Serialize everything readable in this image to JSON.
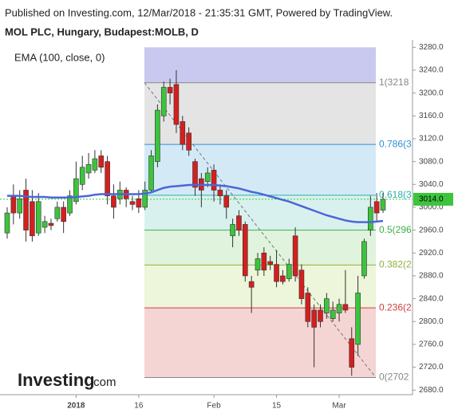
{
  "header": {
    "published": "Published on Investing.com, 12/Mar/2018 - 21:35:31 GMT, Powered by TradingView.",
    "symbol": "MOL PLC, Hungary, Budapest:MOLB, D"
  },
  "logo": {
    "name": "Investing",
    "suffix": ".com"
  },
  "chart_data": {
    "type": "candlestick",
    "categories": [
      null,
      null,
      null,
      null,
      null,
      null,
      null,
      null,
      null,
      null,
      null,
      "2018",
      null,
      null,
      null,
      null,
      null,
      null,
      null,
      null,
      null,
      "16",
      null,
      null,
      null,
      null,
      null,
      null,
      null,
      null,
      null,
      null,
      null,
      "Feb",
      null,
      null,
      null,
      null,
      null,
      null,
      null,
      null,
      null,
      "15",
      null,
      null,
      null,
      null,
      null,
      null,
      null,
      null,
      null,
      "Mar",
      null,
      null,
      null,
      null,
      null,
      null,
      null
    ],
    "open": [
      2955,
      3020,
      2990,
      3030,
      3010,
      2955,
      2965,
      2972,
      2980,
      3000,
      2990,
      3010,
      3040,
      3060,
      3065,
      3090,
      3080,
      3020,
      3015,
      3030,
      3010,
      3015,
      3000,
      3030,
      3080,
      3160,
      3210,
      3215,
      3150,
      3130,
      3080,
      3050,
      3045,
      3065,
      3030,
      3020,
      2950,
      2985,
      2970,
      2870,
      2890,
      2920,
      2905,
      2900,
      2880,
      2875,
      2950,
      2890,
      2850,
      2820,
      2820,
      2815,
      2805,
      2815,
      2830,
      2770,
      2760,
      2880,
      2960,
      3010,
      2995
    ],
    "high": [
      3000,
      3040,
      3030,
      3050,
      3030,
      3025,
      2985,
      2980,
      3010,
      3010,
      3030,
      3080,
      3090,
      3095,
      3100,
      3100,
      3090,
      3040,
      3045,
      3035,
      3020,
      3030,
      3045,
      3100,
      3180,
      3220,
      3225,
      3240,
      3160,
      3140,
      3085,
      3060,
      3070,
      3075,
      3040,
      3030,
      2980,
      2995,
      2975,
      2880,
      2920,
      2930,
      2915,
      2925,
      2890,
      2910,
      2965,
      2900,
      2860,
      2830,
      2830,
      2850,
      2835,
      2840,
      2890,
      2790,
      2880,
      2945,
      3020,
      3025,
      3025
    ],
    "low": [
      2945,
      2970,
      2980,
      2940,
      2940,
      2950,
      2955,
      2960,
      2975,
      2955,
      2985,
      3005,
      3030,
      3050,
      3060,
      3060,
      3005,
      2980,
      3005,
      3000,
      2995,
      2990,
      2995,
      3025,
      3070,
      3150,
      3180,
      3130,
      3100,
      3090,
      3020,
      3000,
      3035,
      3010,
      3005,
      2980,
      2930,
      2950,
      2870,
      2815,
      2880,
      2880,
      2890,
      2860,
      2865,
      2870,
      2870,
      2830,
      2790,
      2720,
      2790,
      2805,
      2800,
      2800,
      2815,
      2705,
      2740,
      2875,
      2950,
      2975,
      2990
    ],
    "close": [
      2990,
      2990,
      3015,
      2960,
      2950,
      3010,
      2975,
      2968,
      3000,
      2975,
      3020,
      3050,
      3070,
      3075,
      3085,
      3070,
      3020,
      3000,
      3030,
      3015,
      3005,
      3000,
      3030,
      3090,
      3170,
      3210,
      3200,
      3145,
      3110,
      3100,
      3035,
      3030,
      3060,
      3030,
      3020,
      3000,
      2970,
      2960,
      2880,
      2860,
      2910,
      2890,
      2900,
      2870,
      2870,
      2900,
      2880,
      2840,
      2800,
      2790,
      2800,
      2840,
      2820,
      2830,
      2820,
      2720,
      2850,
      2940,
      3000,
      2990,
      3014
    ],
    "up_color": "#3cc43c",
    "down_color": "#d41f1f",
    "ema": {
      "name": "EMA (100, close, 0)",
      "color": "#4a66d8",
      "values": [
        3020,
        3020,
        3020,
        3019,
        3018,
        3018,
        3018,
        3017,
        3017,
        3017,
        3017,
        3018,
        3019,
        3020,
        3022,
        3023,
        3023,
        3023,
        3023,
        3023,
        3023,
        3023,
        3024,
        3026,
        3030,
        3034,
        3036,
        3037,
        3038,
        3039,
        3039,
        3039,
        3039,
        3039,
        3038,
        3037,
        3035,
        3033,
        3030,
        3027,
        3025,
        3022,
        3019,
        3016,
        3013,
        3010,
        3006,
        3002,
        2998,
        2994,
        2990,
        2986,
        2983,
        2980,
        2977,
        2975,
        2974,
        2974,
        2974,
        2975,
        2976
      ]
    },
    "last_price": {
      "value": 3014,
      "label": "3014.0",
      "color": "#3cc43c"
    },
    "fib": {
      "top": 3280,
      "top_fill": "#c9c9f0",
      "levels": [
        {
          "label": "1(3218",
          "price": 3218,
          "color": "#888888",
          "fill": "#e4e4e4"
        },
        {
          "label": "0.786(3",
          "price": 3110,
          "color": "#2e8fd0",
          "fill": "#d4e9f6"
        },
        {
          "label": "0.618(3",
          "price": 3021,
          "color": "#29b0a8",
          "fill": "#d9f1ee"
        },
        {
          "label": "0.5(296",
          "price": 2960,
          "color": "#3cb04a",
          "fill": "#e0f3dc"
        },
        {
          "label": "0.382(2",
          "price": 2899,
          "color": "#8cb03c",
          "fill": "#edf5da"
        },
        {
          "label": "0.236(2",
          "price": 2824,
          "color": "#d04040",
          "fill": "#f5d4d4"
        },
        {
          "label": "0(2702",
          "price": 2702,
          "color": "#888888"
        }
      ]
    },
    "ylim": [
      2672,
      3293
    ],
    "yticks": [
      {
        "value": 2680,
        "label": "2680.0"
      },
      {
        "value": 2720,
        "label": "2720.0"
      },
      {
        "value": 2760,
        "label": "2760.0"
      },
      {
        "value": 2800,
        "label": "2800.0"
      },
      {
        "value": 2840,
        "label": "2840.0"
      },
      {
        "value": 2880,
        "label": "2880.0"
      },
      {
        "value": 2920,
        "label": "2920.0"
      },
      {
        "value": 2960,
        "label": "2960.0"
      },
      {
        "value": 3000,
        "label": "3000.0"
      },
      {
        "value": 3040,
        "label": "3040.0"
      },
      {
        "value": 3080,
        "label": "3080.0"
      },
      {
        "value": 3120,
        "label": "3120.0"
      },
      {
        "value": 3160,
        "label": "3160.0"
      },
      {
        "value": 3200,
        "label": "3200.0"
      },
      {
        "value": 3240,
        "label": "3240.0"
      },
      {
        "value": 3280,
        "label": "3280.0"
      }
    ]
  }
}
